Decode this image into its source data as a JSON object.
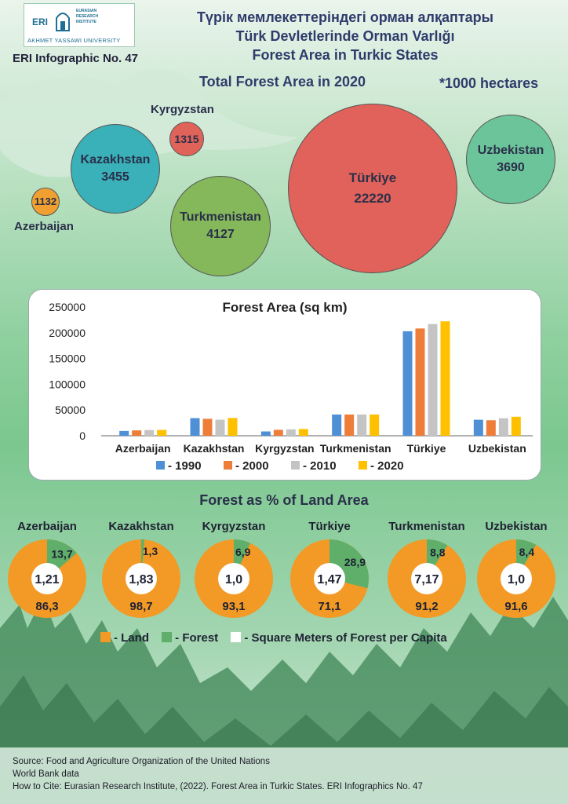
{
  "header": {
    "logo_eri": "ERI",
    "logo_institute": [
      "EURASIAN",
      "RESEARCH",
      "INSTITUTE"
    ],
    "logo_university": "AKHMET YASSAWI UNIVERSITY",
    "title_kz": "Түрік мемлекеттеріндегі орман алқаптары",
    "title_tr": "Türk Devletlerinde Orman Varlığı",
    "title_en": "Forest Area in Turkic States",
    "infographic_no": "ERI Infographic No. 47"
  },
  "bubbles": {
    "title": "Total Forest Area in 2020",
    "unit_note": "*1000 hectares",
    "items": [
      {
        "country": "Azerbaijan",
        "value": "1132",
        "color": "#f0a030"
      },
      {
        "country": "Kazakhstan",
        "value": "3455",
        "color": "#3ab0b8"
      },
      {
        "country": "Kyrgyzstan",
        "value": "1315",
        "color": "#e0635a"
      },
      {
        "country": "Turkmenistan",
        "value": "4127",
        "color": "#84b85a"
      },
      {
        "country": "Türkiye",
        "value": "22220",
        "color": "#e0625a"
      },
      {
        "country": "Uzbekistan",
        "value": "3690",
        "color": "#6cc59a"
      }
    ]
  },
  "chart_data": [
    {
      "type": "bar",
      "title": "Forest Area (sq km)",
      "categories": [
        "Azerbaijan",
        "Kazakhstan",
        "Kyrgyzstan",
        "Turkmenistan",
        "Türkiye",
        "Uzbekistan"
      ],
      "series": [
        {
          "name": "- 1990",
          "color": "#4e8fd6",
          "values": [
            9360,
            34220,
            8370,
            41270,
            202900,
            31090
          ]
        },
        {
          "name": "- 2000",
          "color": "#ee7d3a",
          "values": [
            10460,
            32910,
            11510,
            41270,
            208310,
            30080
          ]
        },
        {
          "name": "- 2010",
          "color": "#c4c4c4",
          "values": [
            11120,
            31130,
            12400,
            41270,
            216950,
            34000
          ]
        },
        {
          "name": "- 2020",
          "color": "#ffc000",
          "values": [
            11320,
            34550,
            13150,
            41270,
            222200,
            36900
          ]
        }
      ],
      "ylim": [
        0,
        250000
      ],
      "yticks": [
        "0",
        "50000",
        "100000",
        "150000",
        "200000",
        "250000"
      ],
      "grid": false,
      "legend": "bottom"
    },
    {
      "type": "pie",
      "title": "Forest as % of Land Area",
      "legend": [
        "- Land",
        "- Forest",
        "- Square Meters of Forest per Capita"
      ],
      "colors": {
        "land": "#f29a25",
        "forest": "#5faf6a",
        "center": "#ffffff"
      },
      "items": [
        {
          "country": "Azerbaijan",
          "land": 86.3,
          "forest": 13.7,
          "land_label": "86,3",
          "forest_label": "13,7",
          "per_capita": "1,21"
        },
        {
          "country": "Kazakhstan",
          "land": 98.7,
          "forest": 1.3,
          "land_label": "98,7",
          "forest_label": "1,3",
          "per_capita": "1,83"
        },
        {
          "country": "Kyrgyzstan",
          "land": 93.1,
          "forest": 6.9,
          "land_label": "93,1",
          "forest_label": "6,9",
          "per_capita": "1,0"
        },
        {
          "country": "Türkiye",
          "land": 71.1,
          "forest": 28.9,
          "land_label": "71,1",
          "forest_label": "28,9",
          "per_capita": "1,47"
        },
        {
          "country": "Turkmenistan",
          "land": 91.2,
          "forest": 8.8,
          "land_label": "91,2",
          "forest_label": "8,8",
          "per_capita": "7,17"
        },
        {
          "country": "Uzbekistan",
          "land": 91.6,
          "forest": 8.4,
          "land_label": "91,6",
          "forest_label": "8,4",
          "per_capita": "1,0"
        }
      ]
    }
  ],
  "footer": {
    "source": "Source: Food and Agriculture Organization of the United Nations",
    "source2": "World Bank data",
    "cite": "How to Cite: Eurasian Research Institute, (2022). Forest Area in Turkic States. ERI Infographics No. 47"
  }
}
